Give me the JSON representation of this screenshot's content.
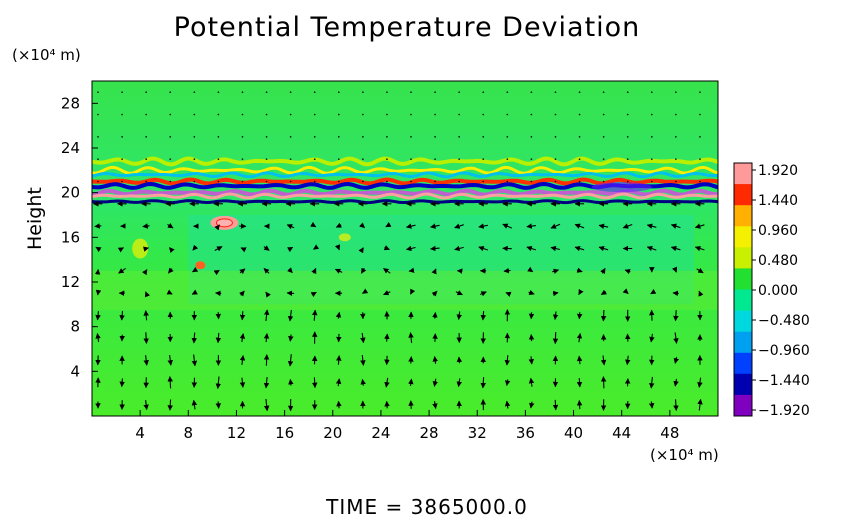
{
  "chart_data": {
    "type": "heatmap",
    "title": "Potential Temperature Deviation",
    "ylabel": "Height",
    "y_unit": "(×10⁴ m)",
    "x_unit": "(×10⁴ m)",
    "xlim": [
      0,
      52
    ],
    "ylim": [
      0,
      30
    ],
    "x_ticks": [
      "4",
      "8",
      "12",
      "16",
      "20",
      "24",
      "28",
      "32",
      "36",
      "40",
      "44",
      "48"
    ],
    "x_tick_values": [
      4,
      8,
      12,
      16,
      20,
      24,
      28,
      32,
      36,
      40,
      44,
      48
    ],
    "y_ticks": [
      "4",
      "8",
      "12",
      "16",
      "20",
      "24",
      "28"
    ],
    "y_tick_values": [
      4,
      8,
      12,
      16,
      20,
      24,
      28
    ],
    "colorbar": {
      "labels": [
        "1.920",
        "1.440",
        "0.960",
        "0.480",
        "0.000",
        "−0.480",
        "−0.960",
        "−1.440",
        "−1.920"
      ],
      "values": [
        1.92,
        1.44,
        0.96,
        0.48,
        0.0,
        -0.48,
        -0.96,
        -1.44,
        -1.92
      ],
      "colors": [
        "#ff9a9a",
        "#ff2a00",
        "#ffb000",
        "#f5f000",
        "#c8f000",
        "#22e030",
        "#00e890",
        "#00d8e0",
        "#00a0f0",
        "#0040ff",
        "#0000b0",
        "#8000c0"
      ]
    },
    "field_summary": {
      "background_value": 0.0,
      "layer_heights": [
        19.2,
        20.0,
        21.0
      ],
      "vector_field": true
    },
    "annotation": "TIME = 3865000.0"
  }
}
